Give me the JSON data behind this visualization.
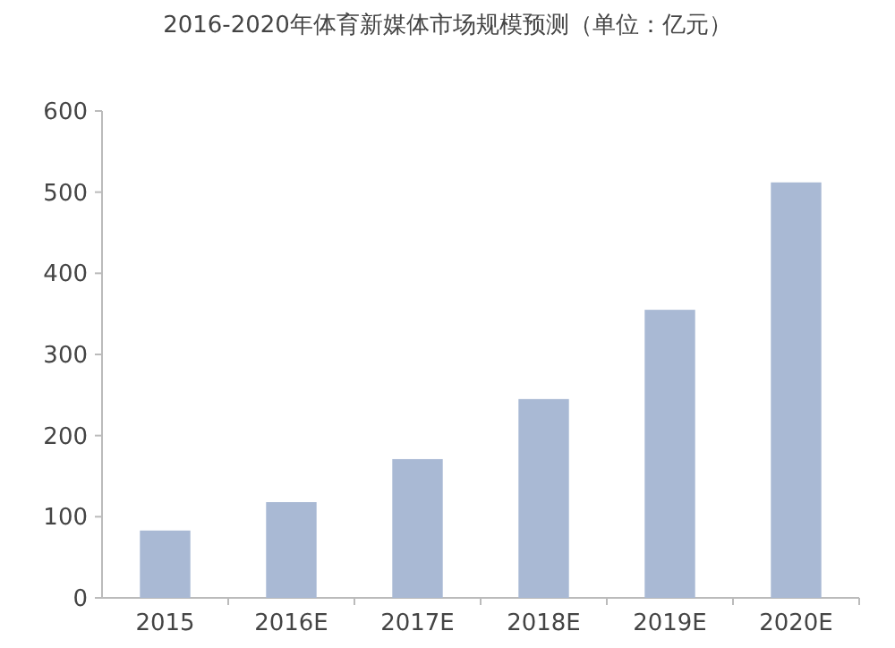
{
  "chart_data": {
    "type": "bar",
    "title": "2016-2020年体育新媒体市场规模预测（单位：亿元）",
    "categories": [
      "2015",
      "2016E",
      "2017E",
      "2018E",
      "2019E",
      "2020E"
    ],
    "values": [
      83,
      118,
      171,
      245,
      355,
      512
    ],
    "color": "#a9b9d4",
    "ylim": [
      0,
      600
    ],
    "yticks": [
      0,
      100,
      200,
      300,
      400,
      500,
      600
    ],
    "grid": false
  }
}
